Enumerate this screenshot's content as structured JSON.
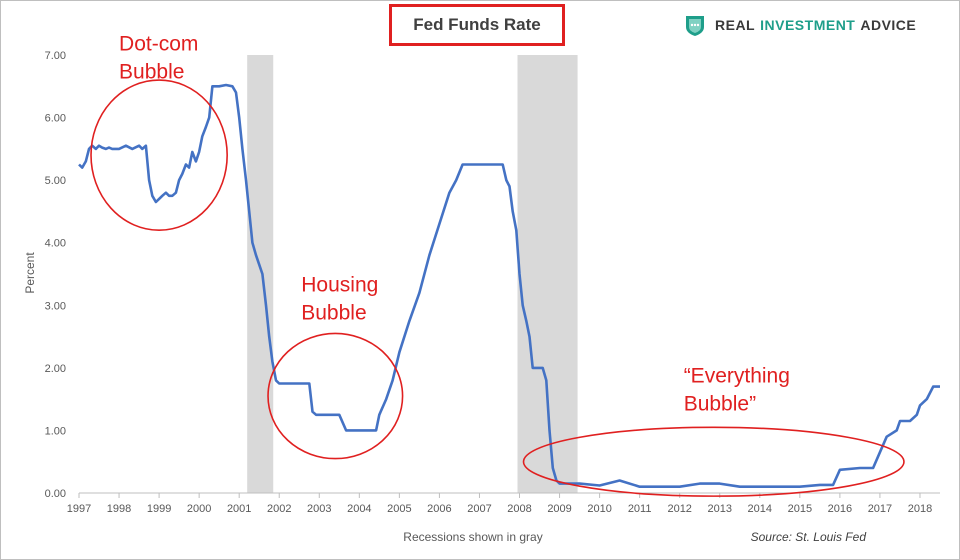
{
  "chart_data": {
    "type": "line",
    "title": "Fed Funds Rate",
    "xlabel": "Recessions shown in gray",
    "ylabel": "Percent",
    "source": "Source: St. Louis Fed",
    "xlim": [
      1997,
      2018.5
    ],
    "ylim": [
      0,
      7
    ],
    "yticks": [
      "0.00",
      "1.00",
      "2.00",
      "3.00",
      "4.00",
      "5.00",
      "6.00",
      "7.00"
    ],
    "xticks": [
      "1997",
      "1998",
      "1999",
      "2000",
      "2001",
      "2002",
      "2003",
      "2004",
      "2005",
      "2006",
      "2007",
      "2008",
      "2009",
      "2010",
      "2011",
      "2012",
      "2013",
      "2014",
      "2015",
      "2016",
      "2017",
      "2018"
    ],
    "recessions": [
      [
        2001.2,
        2001.85
      ],
      [
        2007.95,
        2009.45
      ]
    ],
    "series": [
      {
        "name": "Fed Funds Rate",
        "color": "#4472c4",
        "x": [
          1997.0,
          1997.08,
          1997.17,
          1997.25,
          1997.33,
          1997.42,
          1997.5,
          1997.58,
          1997.67,
          1997.75,
          1997.83,
          1997.92,
          1998.0,
          1998.17,
          1998.33,
          1998.5,
          1998.58,
          1998.67,
          1998.75,
          1998.83,
          1998.92,
          1999.0,
          1999.08,
          1999.17,
          1999.25,
          1999.33,
          1999.42,
          1999.5,
          1999.58,
          1999.67,
          1999.75,
          1999.83,
          1999.92,
          2000.0,
          2000.08,
          2000.17,
          2000.25,
          2000.33,
          2000.42,
          2000.5,
          2000.67,
          2000.83,
          2000.92,
          2001.0,
          2001.08,
          2001.17,
          2001.25,
          2001.33,
          2001.42,
          2001.5,
          2001.58,
          2001.67,
          2001.75,
          2001.83,
          2001.92,
          2002.0,
          2002.5,
          2002.75,
          2002.83,
          2002.92,
          2003.0,
          2003.25,
          2003.42,
          2003.5,
          2003.67,
          2003.83,
          2004.0,
          2004.42,
          2004.5,
          2004.67,
          2004.83,
          2005.0,
          2005.25,
          2005.5,
          2005.75,
          2006.0,
          2006.25,
          2006.42,
          2006.58,
          2007.0,
          2007.5,
          2007.58,
          2007.67,
          2007.75,
          2007.83,
          2007.92,
          2008.0,
          2008.08,
          2008.17,
          2008.25,
          2008.33,
          2008.5,
          2008.58,
          2008.67,
          2008.75,
          2008.83,
          2008.92,
          2009.0,
          2009.5,
          2010.0,
          2010.5,
          2011.0,
          2011.5,
          2012.0,
          2012.5,
          2013.0,
          2013.5,
          2014.0,
          2014.5,
          2015.0,
          2015.5,
          2015.83,
          2016.0,
          2016.5,
          2016.83,
          2017.0,
          2017.17,
          2017.42,
          2017.5,
          2017.75,
          2017.92,
          2018.0,
          2018.17,
          2018.25,
          2018.33,
          2018.42,
          2018.5
        ],
        "y": [
          5.25,
          5.2,
          5.3,
          5.5,
          5.55,
          5.5,
          5.55,
          5.52,
          5.5,
          5.52,
          5.5,
          5.5,
          5.5,
          5.55,
          5.5,
          5.55,
          5.5,
          5.55,
          5.0,
          4.75,
          4.65,
          4.7,
          4.75,
          4.8,
          4.75,
          4.75,
          4.8,
          5.0,
          5.1,
          5.25,
          5.2,
          5.45,
          5.3,
          5.45,
          5.7,
          5.85,
          6.0,
          6.5,
          6.5,
          6.5,
          6.52,
          6.5,
          6.4,
          6.0,
          5.5,
          5.0,
          4.5,
          4.0,
          3.8,
          3.65,
          3.5,
          3.0,
          2.5,
          2.1,
          1.8,
          1.75,
          1.75,
          1.75,
          1.3,
          1.25,
          1.25,
          1.25,
          1.25,
          1.25,
          1.0,
          1.0,
          1.0,
          1.0,
          1.25,
          1.5,
          1.8,
          2.25,
          2.75,
          3.2,
          3.8,
          4.3,
          4.8,
          5.0,
          5.25,
          5.25,
          5.25,
          5.25,
          5.0,
          4.9,
          4.5,
          4.2,
          3.5,
          3.0,
          2.75,
          2.5,
          2.0,
          2.0,
          2.0,
          1.8,
          1.0,
          0.4,
          0.2,
          0.15,
          0.15,
          0.12,
          0.2,
          0.1,
          0.1,
          0.1,
          0.15,
          0.15,
          0.1,
          0.1,
          0.1,
          0.1,
          0.13,
          0.13,
          0.37,
          0.4,
          0.4,
          0.65,
          0.9,
          1.0,
          1.15,
          1.15,
          1.25,
          1.4,
          1.5,
          1.6,
          1.7,
          1.7,
          1.7
        ]
      }
    ],
    "annotations": [
      {
        "lines": [
          "Dot-com",
          "Bubble"
        ],
        "x": 1998.0,
        "y": 7.1
      },
      {
        "lines": [
          "Housing",
          "Bubble"
        ],
        "x": 2002.55,
        "y": 3.25
      },
      {
        "lines": [
          "“Everything",
          "Bubble”"
        ],
        "x": 2012.1,
        "y": 1.8
      }
    ],
    "circles": [
      {
        "cx": 1999.0,
        "cy": 5.4,
        "rx_years": 1.7,
        "ry_pct": 1.2
      },
      {
        "cx": 2003.4,
        "cy": 1.55,
        "rx_years": 1.68,
        "ry_pct": 1.0
      },
      {
        "cx": 2012.85,
        "cy": 0.5,
        "rx_years": 4.75,
        "ry_pct": 0.55
      }
    ],
    "annotation_color": "#e02020",
    "recession_color": "#d9d9d9"
  },
  "brand": {
    "part1": "REAL",
    "part2": "INVESTMENT",
    "part3": "ADVICE",
    "logo_icon": "shield-chat-icon"
  }
}
